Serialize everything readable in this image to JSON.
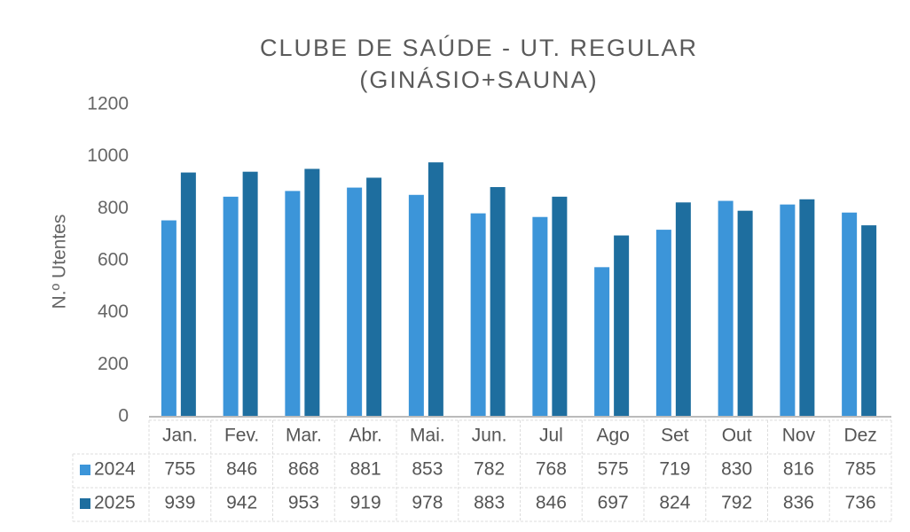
{
  "chart_data": {
    "type": "bar",
    "title": [
      "CLUBE DE SAÚDE - UT. REGULAR",
      "(GINÁSIO+SAUNA)"
    ],
    "y_label": "N.º Utentes",
    "categories": [
      "Jan.",
      "Fev.",
      "Mar.",
      "Abr.",
      "Mai.",
      "Jun.",
      "Jul",
      "Ago",
      "Set",
      "Out",
      "Nov",
      "Dez"
    ],
    "series": [
      {
        "name": "2024",
        "color": "#3c95d9",
        "values": [
          755,
          846,
          868,
          881,
          853,
          782,
          768,
          575,
          719,
          830,
          816,
          785
        ]
      },
      {
        "name": "2025",
        "color": "#1e6e9f",
        "values": [
          939,
          942,
          953,
          919,
          978,
          883,
          846,
          697,
          824,
          792,
          836,
          736
        ]
      }
    ],
    "ylim": [
      0,
      1200
    ],
    "yticks": [
      0,
      200,
      400,
      600,
      800,
      1000,
      1200
    ],
    "grid": false,
    "data_table": true
  }
}
